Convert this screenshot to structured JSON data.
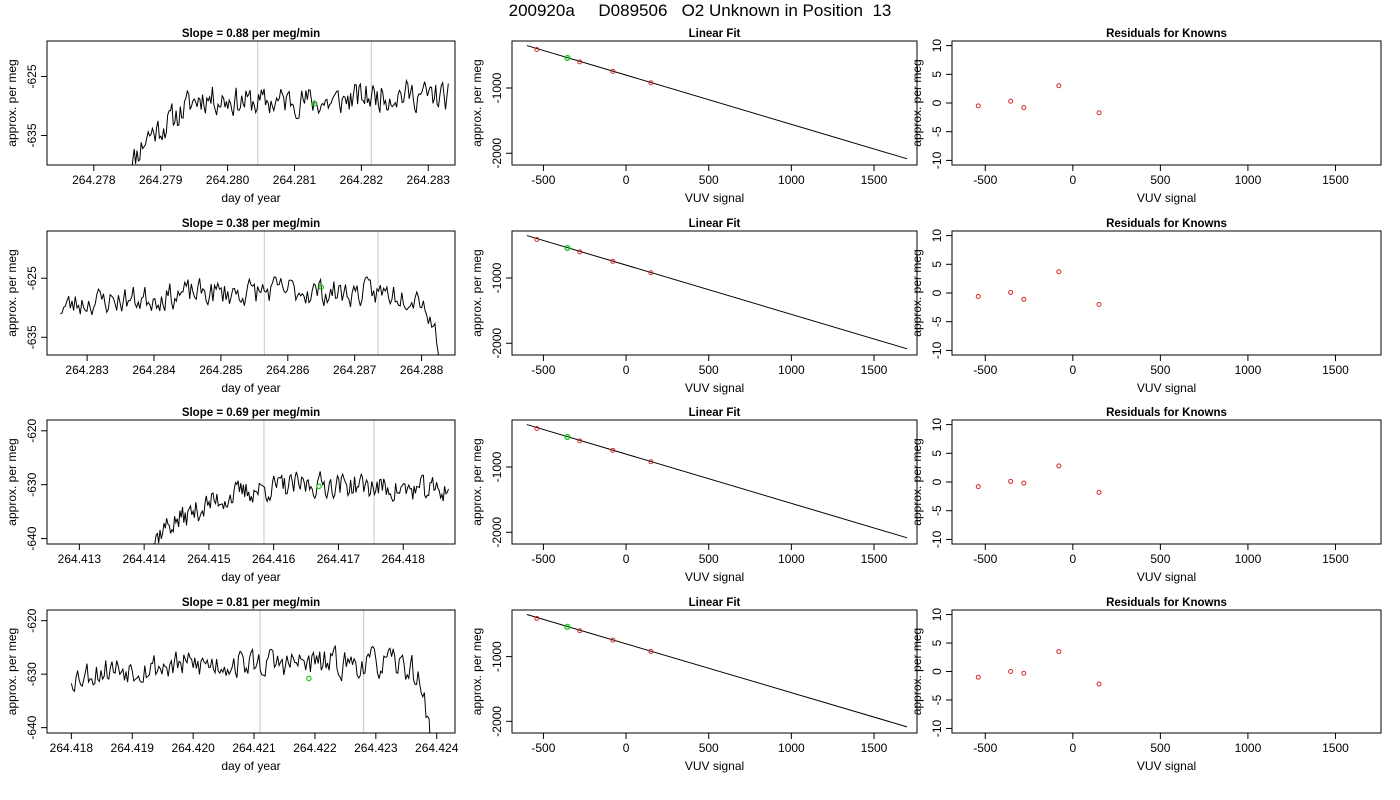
{
  "page": {
    "title": "200920a     D089506   O2 Unknown in Position  13"
  },
  "chart_data": [
    {
      "type": "line",
      "panel": "time-series",
      "row": 0,
      "title": "Slope =  0.88  per meg/min",
      "xlabel": "day of year",
      "ylabel": "approx. per meg",
      "xlim": [
        264.2773,
        264.2834
      ],
      "ylim": [
        -640,
        -619
      ],
      "xticks": [
        "264.278",
        "264.279",
        "264.280",
        "264.281",
        "264.282",
        "264.283"
      ],
      "xtick_values": [
        264.278,
        264.279,
        264.28,
        264.281,
        264.282,
        264.283
      ],
      "yticks": [
        "-625",
        "-635"
      ],
      "ytick_values": [
        -625,
        -635
      ],
      "x_start": 264.2785,
      "x_end": 264.2833,
      "trend": [
        [
          264.2785,
          -641
        ],
        [
          264.2788,
          -635
        ],
        [
          264.2791,
          -633
        ],
        [
          264.2794,
          -630
        ],
        [
          264.2796,
          -628.5
        ],
        [
          264.28,
          -629
        ],
        [
          264.2805,
          -629.5
        ],
        [
          264.281,
          -629
        ],
        [
          264.2815,
          -629.5
        ],
        [
          264.282,
          -628.5
        ],
        [
          264.2826,
          -628
        ],
        [
          264.2833,
          -628.5
        ]
      ],
      "noise": 2.2,
      "seed": 11,
      "vlines": [
        264.28045,
        264.28215
      ],
      "marker": {
        "x": 264.2813,
        "y": -629.6
      }
    },
    {
      "type": "line",
      "panel": "time-series",
      "row": 1,
      "title": "Slope =  0.38  per meg/min",
      "xlabel": "day of year",
      "ylabel": "approx. per meg",
      "xlim": [
        264.2824,
        264.2885
      ],
      "ylim": [
        -638,
        -617
      ],
      "xticks": [
        "264.283",
        "264.284",
        "264.285",
        "264.286",
        "264.287",
        "264.288"
      ],
      "xtick_values": [
        264.283,
        264.284,
        264.285,
        264.286,
        264.287,
        264.288
      ],
      "yticks": [
        "-625",
        "-635"
      ],
      "ytick_values": [
        -625,
        -635
      ],
      "x_start": 264.2826,
      "x_end": 264.2883,
      "trend": [
        [
          264.2826,
          -630
        ],
        [
          264.283,
          -629
        ],
        [
          264.2838,
          -628.5
        ],
        [
          264.2846,
          -627.5
        ],
        [
          264.2852,
          -627.5
        ],
        [
          264.286,
          -627
        ],
        [
          264.2868,
          -627.5
        ],
        [
          264.2876,
          -627.5
        ],
        [
          264.288,
          -628
        ],
        [
          264.2882,
          -634
        ],
        [
          264.2883,
          -640
        ]
      ],
      "noise": 2.0,
      "seed": 23,
      "vlines": [
        264.28565,
        264.28735
      ],
      "marker": {
        "x": 264.2865,
        "y": -626.5
      }
    },
    {
      "type": "line",
      "panel": "time-series",
      "row": 2,
      "title": "Slope =  0.69  per meg/min",
      "xlabel": "day of year",
      "ylabel": "approx. per meg",
      "xlim": [
        264.4125,
        264.4188
      ],
      "ylim": [
        -641,
        -618
      ],
      "xticks": [
        "264.413",
        "264.414",
        "264.415",
        "264.416",
        "264.417",
        "264.418"
      ],
      "xtick_values": [
        264.413,
        264.414,
        264.415,
        264.416,
        264.417,
        264.418
      ],
      "yticks": [
        "-620",
        "-630",
        "-640"
      ],
      "ytick_values": [
        -620,
        -630,
        -640
      ],
      "x_start": 264.414,
      "x_end": 264.4187,
      "trend": [
        [
          264.414,
          -643
        ],
        [
          264.4143,
          -638
        ],
        [
          264.4147,
          -635.5
        ],
        [
          264.4151,
          -633
        ],
        [
          264.4155,
          -631.5
        ],
        [
          264.416,
          -630.5
        ],
        [
          264.4166,
          -630
        ],
        [
          264.4172,
          -630
        ],
        [
          264.418,
          -631
        ],
        [
          264.4187,
          -631
        ]
      ],
      "noise": 2.0,
      "seed": 37,
      "vlines": [
        264.41585,
        264.41755
      ],
      "marker": {
        "x": 264.4167,
        "y": -630.3
      }
    },
    {
      "type": "line",
      "panel": "time-series",
      "row": 3,
      "title": "Slope =  0.81  per meg/min",
      "xlabel": "day of year",
      "ylabel": "approx. per meg",
      "xlim": [
        264.4176,
        264.4243
      ],
      "ylim": [
        -641,
        -618
      ],
      "xticks": [
        "264.418",
        "264.419",
        "264.420",
        "264.421",
        "264.422",
        "264.423",
        "264.424"
      ],
      "xtick_values": [
        264.418,
        264.419,
        264.42,
        264.421,
        264.422,
        264.423,
        264.424
      ],
      "yticks": [
        "-620",
        "-630",
        "-640"
      ],
      "ytick_values": [
        -620,
        -630,
        -640
      ],
      "x_start": 264.418,
      "x_end": 264.4239,
      "trend": [
        [
          264.418,
          -630.5
        ],
        [
          264.4186,
          -629
        ],
        [
          264.4195,
          -628.5
        ],
        [
          264.4205,
          -628
        ],
        [
          264.4215,
          -628
        ],
        [
          264.4225,
          -628
        ],
        [
          264.4232,
          -628
        ],
        [
          264.4236,
          -629
        ],
        [
          264.4238,
          -634
        ],
        [
          264.4239,
          -643
        ]
      ],
      "noise": 2.4,
      "seed": 53,
      "vlines": [
        264.4211,
        264.4228
      ],
      "marker": {
        "x": 264.4219,
        "y": -630.8
      }
    },
    {
      "type": "scatter",
      "panel": "linear-fit",
      "row": 0,
      "title": "Linear Fit",
      "xlabel": "VUV signal",
      "ylabel": "approx. per meg",
      "xlim": [
        -690,
        1760
      ],
      "ylim": [
        -2180,
        -280
      ],
      "xticks": [
        "-500",
        "0",
        "500",
        "1000",
        "1500"
      ],
      "xtick_values": [
        -500,
        0,
        500,
        1000,
        1500
      ],
      "yticks": [
        "-1000",
        "-2000"
      ],
      "ytick_values": [
        -1000,
        -2000
      ],
      "line": [
        [
          -600,
          -350
        ],
        [
          1700,
          -2085
        ]
      ],
      "points": [
        [
          -540,
          -410
        ],
        [
          -280,
          -600
        ],
        [
          -80,
          -745
        ],
        [
          150,
          -920
        ]
      ],
      "unknown": [
        -355,
        -540
      ]
    },
    {
      "type": "scatter",
      "panel": "linear-fit",
      "row": 1,
      "title": "Linear Fit",
      "xlabel": "VUV signal",
      "ylabel": "approx. per meg",
      "xlim": [
        -690,
        1760
      ],
      "ylim": [
        -2180,
        -280
      ],
      "xticks": [
        "-500",
        "0",
        "500",
        "1000",
        "1500"
      ],
      "xtick_values": [
        -500,
        0,
        500,
        1000,
        1500
      ],
      "yticks": [
        "-1000",
        "-2000"
      ],
      "ytick_values": [
        -1000,
        -2000
      ],
      "line": [
        [
          -600,
          -350
        ],
        [
          1700,
          -2085
        ]
      ],
      "points": [
        [
          -540,
          -410
        ],
        [
          -280,
          -600
        ],
        [
          -80,
          -745
        ],
        [
          150,
          -920
        ]
      ],
      "unknown": [
        -355,
        -540
      ]
    },
    {
      "type": "scatter",
      "panel": "linear-fit",
      "row": 2,
      "title": "Linear Fit",
      "xlabel": "VUV signal",
      "ylabel": "approx. per meg",
      "xlim": [
        -690,
        1760
      ],
      "ylim": [
        -2180,
        -280
      ],
      "xticks": [
        "-500",
        "0",
        "500",
        "1000",
        "1500"
      ],
      "xtick_values": [
        -500,
        0,
        500,
        1000,
        1500
      ],
      "yticks": [
        "-1000",
        "-2000"
      ],
      "ytick_values": [
        -1000,
        -2000
      ],
      "line": [
        [
          -600,
          -350
        ],
        [
          1700,
          -2085
        ]
      ],
      "points": [
        [
          -540,
          -410
        ],
        [
          -280,
          -600
        ],
        [
          -80,
          -745
        ],
        [
          150,
          -920
        ]
      ],
      "unknown": [
        -355,
        -540
      ]
    },
    {
      "type": "scatter",
      "panel": "linear-fit",
      "row": 3,
      "title": "Linear Fit",
      "xlabel": "VUV signal",
      "ylabel": "approx. per meg",
      "xlim": [
        -690,
        1760
      ],
      "ylim": [
        -2180,
        -280
      ],
      "xticks": [
        "-500",
        "0",
        "500",
        "1000",
        "1500"
      ],
      "xtick_values": [
        -500,
        0,
        500,
        1000,
        1500
      ],
      "yticks": [
        "-1000",
        "-2000"
      ],
      "ytick_values": [
        -1000,
        -2000
      ],
      "line": [
        [
          -600,
          -350
        ],
        [
          1700,
          -2085
        ]
      ],
      "points": [
        [
          -540,
          -410
        ],
        [
          -280,
          -600
        ],
        [
          -80,
          -745
        ],
        [
          150,
          -920
        ]
      ],
      "unknown": [
        -355,
        -540
      ]
    },
    {
      "type": "scatter",
      "panel": "residuals",
      "row": 0,
      "title": "Residuals for Knowns",
      "xlabel": "VUV signal",
      "ylabel": "approx. per meg",
      "xlim": [
        -690,
        1760
      ],
      "ylim": [
        -10.8,
        10.8
      ],
      "xticks": [
        "-500",
        "0",
        "500",
        "1000",
        "1500"
      ],
      "xtick_values": [
        -500,
        0,
        500,
        1000,
        1500
      ],
      "yticks": [
        "-10",
        "-5",
        "0",
        "5",
        "10"
      ],
      "ytick_values": [
        -10,
        -5,
        0,
        5,
        10
      ],
      "points": [
        [
          -540,
          -0.5
        ],
        [
          -355,
          0.3
        ],
        [
          -280,
          -0.8
        ],
        [
          -80,
          3.0
        ],
        [
          150,
          -1.7
        ]
      ]
    },
    {
      "type": "scatter",
      "panel": "residuals",
      "row": 1,
      "title": "Residuals for Knowns",
      "xlabel": "VUV signal",
      "ylabel": "approx. per meg",
      "xlim": [
        -690,
        1760
      ],
      "ylim": [
        -10.8,
        10.8
      ],
      "xticks": [
        "-500",
        "0",
        "500",
        "1000",
        "1500"
      ],
      "xtick_values": [
        -500,
        0,
        500,
        1000,
        1500
      ],
      "yticks": [
        "-10",
        "-5",
        "0",
        "5",
        "10"
      ],
      "ytick_values": [
        -10,
        -5,
        0,
        5,
        10
      ],
      "points": [
        [
          -540,
          -0.6
        ],
        [
          -355,
          0.1
        ],
        [
          -280,
          -1.1
        ],
        [
          -80,
          3.7
        ],
        [
          150,
          -2.0
        ]
      ]
    },
    {
      "type": "scatter",
      "panel": "residuals",
      "row": 2,
      "title": "Residuals for Knowns",
      "xlabel": "VUV signal",
      "ylabel": "approx. per meg",
      "xlim": [
        -690,
        1760
      ],
      "ylim": [
        -10.8,
        10.8
      ],
      "xticks": [
        "-500",
        "0",
        "500",
        "1000",
        "1500"
      ],
      "xtick_values": [
        -500,
        0,
        500,
        1000,
        1500
      ],
      "yticks": [
        "-10",
        "-5",
        "0",
        "5",
        "10"
      ],
      "ytick_values": [
        -10,
        -5,
        0,
        5,
        10
      ],
      "points": [
        [
          -540,
          -0.8
        ],
        [
          -355,
          0.1
        ],
        [
          -280,
          -0.2
        ],
        [
          -80,
          2.8
        ],
        [
          150,
          -1.8
        ]
      ]
    },
    {
      "type": "scatter",
      "panel": "residuals",
      "row": 3,
      "title": "Residuals for Knowns",
      "xlabel": "VUV signal",
      "ylabel": "approx. per meg",
      "xlim": [
        -690,
        1760
      ],
      "ylim": [
        -10.8,
        10.8
      ],
      "xticks": [
        "-500",
        "0",
        "500",
        "1000",
        "1500"
      ],
      "xtick_values": [
        -500,
        0,
        500,
        1000,
        1500
      ],
      "yticks": [
        "-10",
        "-5",
        "0",
        "5",
        "10"
      ],
      "ytick_values": [
        -10,
        -5,
        0,
        5,
        10
      ],
      "points": [
        [
          -540,
          -1.0
        ],
        [
          -355,
          0.0
        ],
        [
          -280,
          -0.3
        ],
        [
          -80,
          3.5
        ],
        [
          150,
          -2.2
        ]
      ]
    }
  ],
  "colors": {
    "series": "#000000",
    "vline": "#d0d0d0",
    "unknown_marker": "#19c819",
    "known_marker": "#d42a2a",
    "axis": "#000000"
  }
}
